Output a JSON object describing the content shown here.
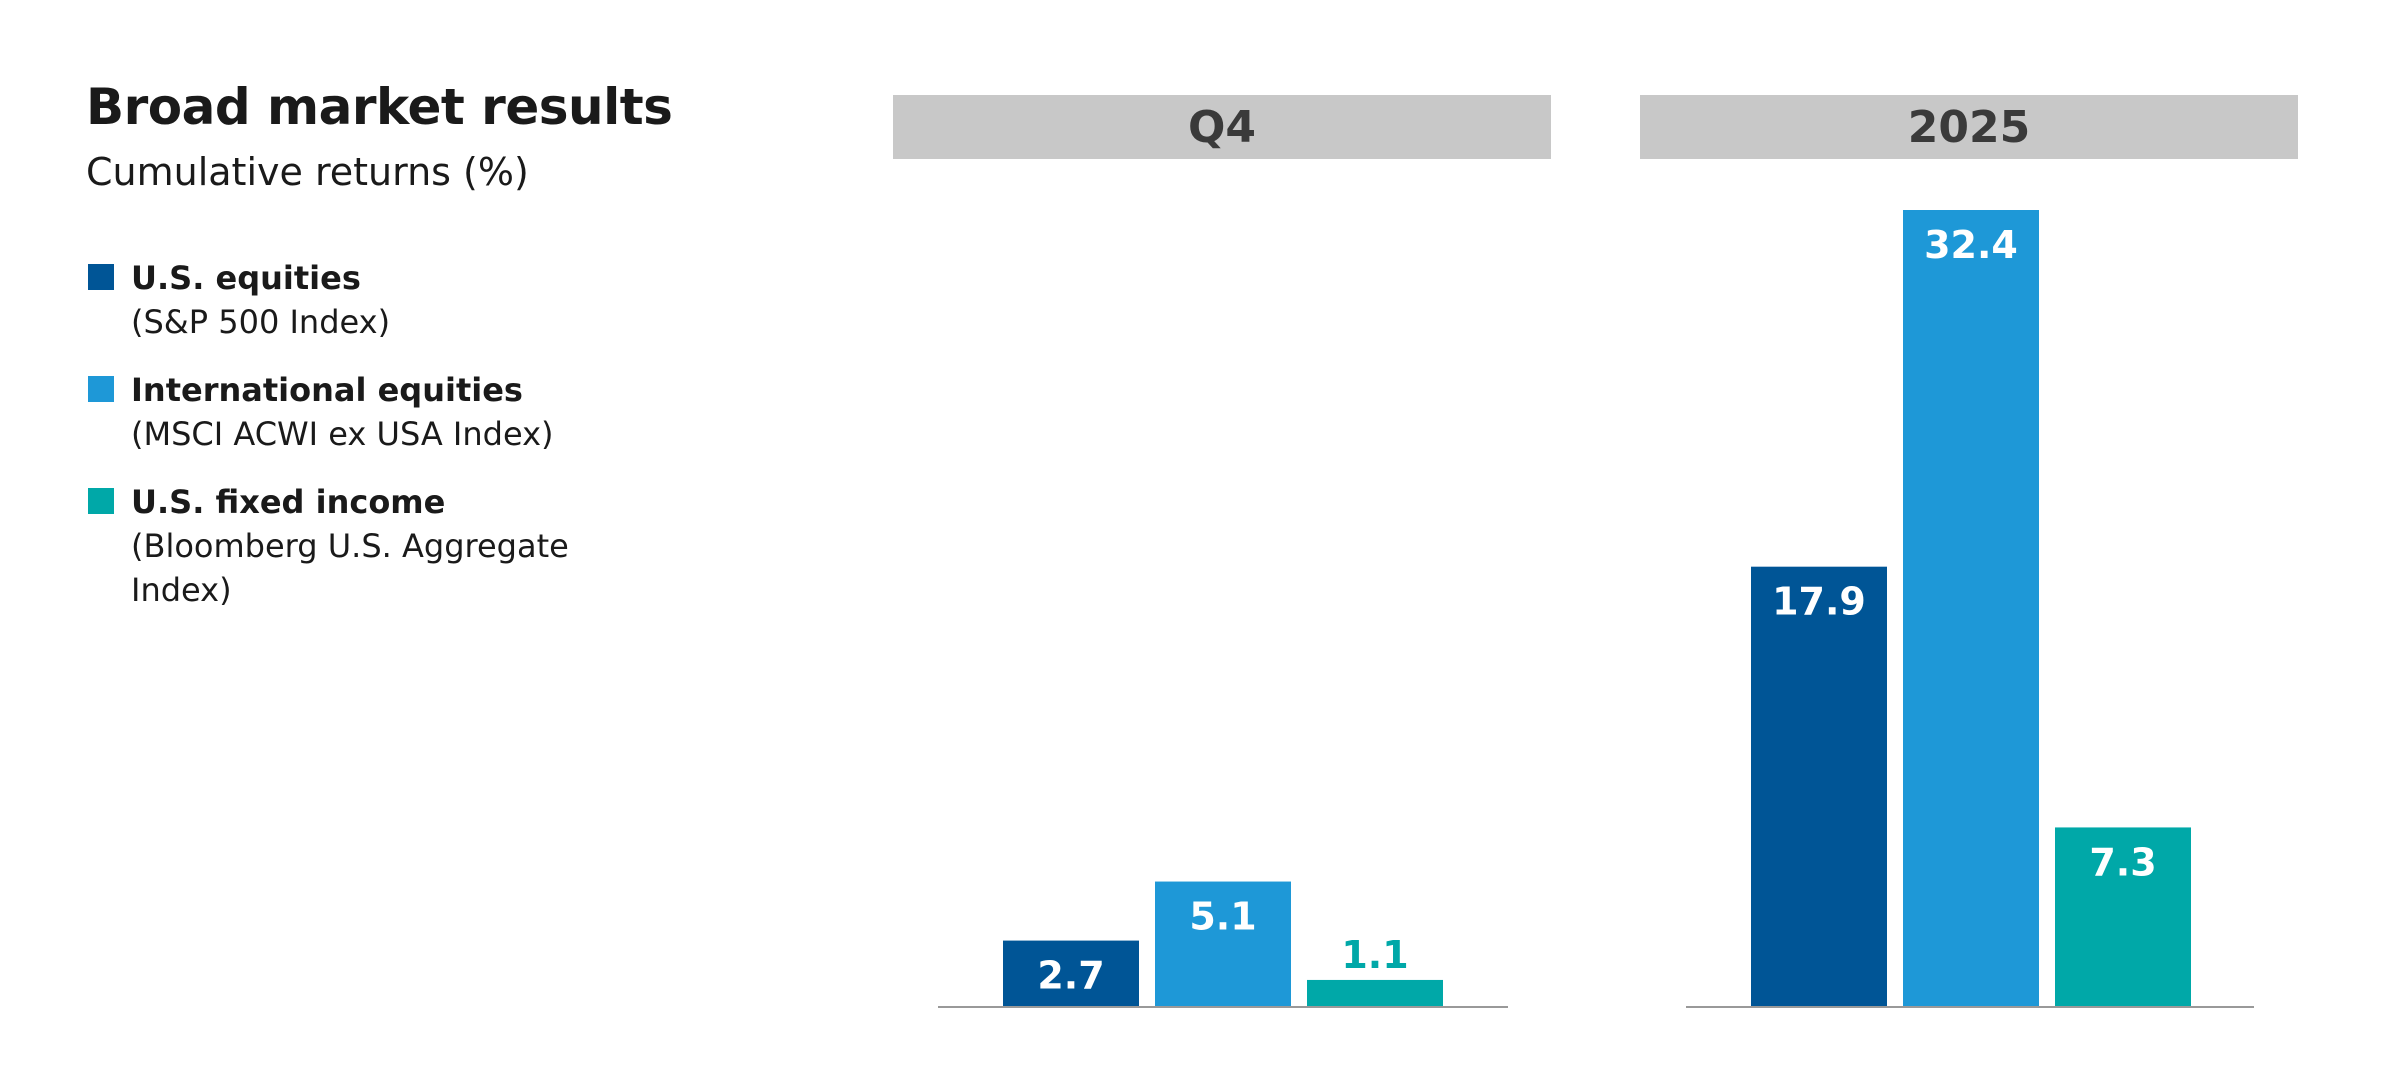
{
  "chart_data": {
    "type": "bar",
    "title": "Broad market results",
    "subtitle": "Cumulative returns (%)",
    "groups": [
      "Q4",
      "2025"
    ],
    "series": [
      {
        "name": "U.S. equities",
        "index": "(S&P 500 Index)",
        "color": "#005596",
        "values": [
          2.7,
          17.9
        ],
        "labels": [
          "2.7",
          "17.9"
        ]
      },
      {
        "name": "International equities",
        "index": "(MSCI ACWI ex USA Index)",
        "color": "#1e98d7",
        "values": [
          5.1,
          32.4
        ],
        "labels": [
          "5.1",
          "32.4"
        ]
      },
      {
        "name": "U.S. fixed income",
        "index": "(Bloomberg U.S. Aggregate Index)",
        "color": "#00a8a8",
        "values": [
          1.1,
          7.3
        ],
        "labels": [
          "1.1",
          "7.3"
        ]
      }
    ],
    "ylim": [
      0,
      32.4
    ],
    "grid": false,
    "legend": "left"
  }
}
